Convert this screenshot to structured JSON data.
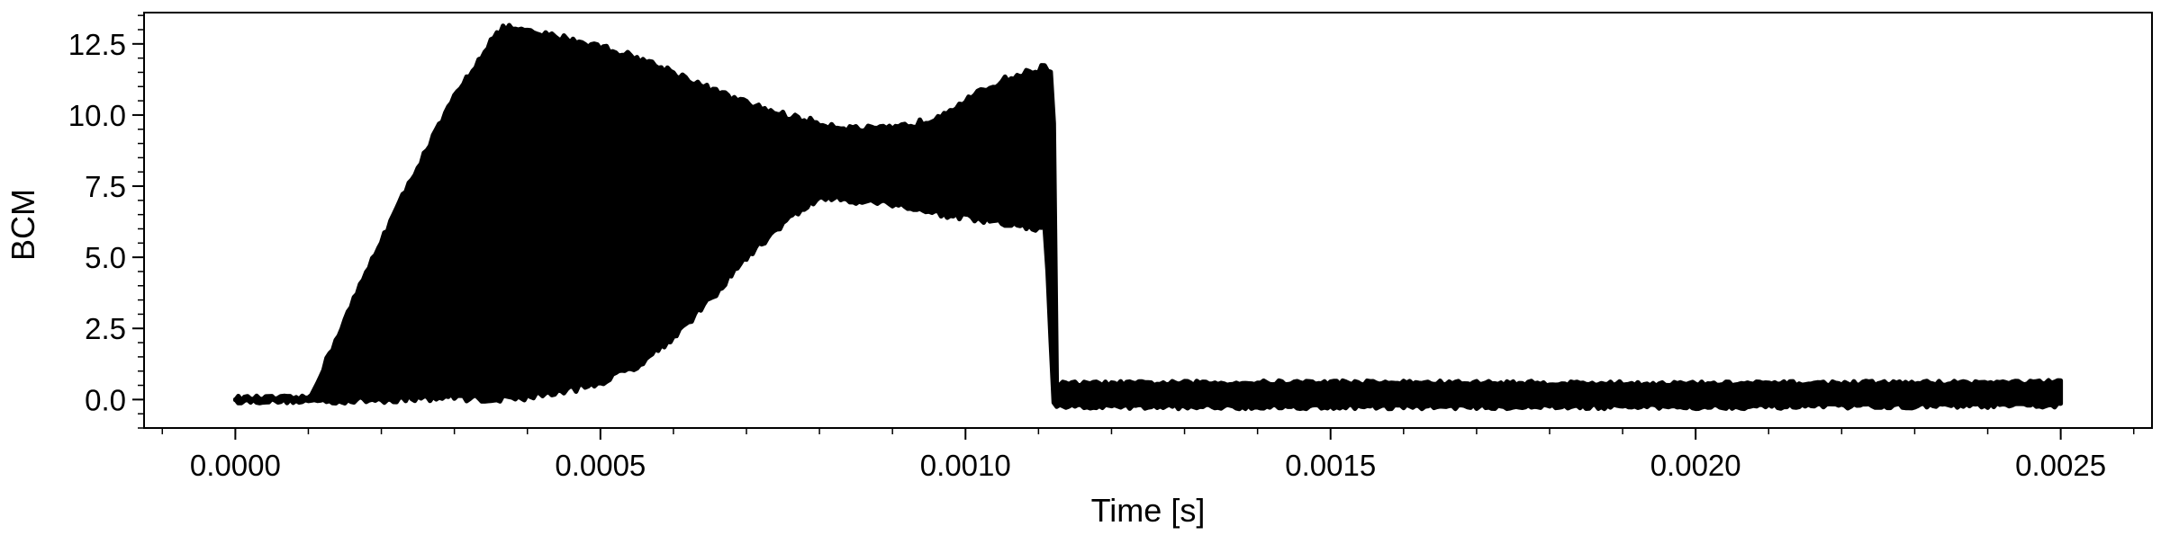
{
  "chart_data": {
    "type": "area",
    "title": "",
    "xlabel": "Time [s]",
    "ylabel": "BCM",
    "xlim": [
      -0.000125,
      0.002625
    ],
    "ylim": [
      -1.0,
      13.6
    ],
    "x_ticks": [
      0.0,
      0.0005,
      0.001,
      0.0015,
      0.002,
      0.0025
    ],
    "x_tick_labels": [
      "0.0000",
      "0.0005",
      "0.0010",
      "0.0015",
      "0.0020",
      "0.0025"
    ],
    "y_ticks": [
      0.0,
      2.5,
      5.0,
      7.5,
      10.0,
      12.5
    ],
    "y_tick_labels": [
      "0.0",
      "2.5",
      "5.0",
      "7.5",
      "10.0",
      "12.5"
    ],
    "grid": false,
    "legend": "none",
    "color": "#000000",
    "series": [
      {
        "x": [
          0.0,
          0.0001,
          0.000105,
          0.00015,
          0.0002,
          0.00025,
          0.0003,
          0.00035,
          0.00037,
          0.0004,
          0.00045,
          0.0005,
          0.00055,
          0.0006,
          0.00065,
          0.0007,
          0.00075,
          0.0008,
          0.00085,
          0.0009,
          0.00095,
          0.001,
          0.00105,
          0.0011,
          0.00111,
          0.00112,
          0.001125,
          0.0015,
          0.002,
          0.0025
        ],
        "upper": [
          0.05,
          0.05,
          0.2,
          2.8,
          5.6,
          8.2,
          10.6,
          12.6,
          13.1,
          12.9,
          12.7,
          12.4,
          12.0,
          11.5,
          10.9,
          10.4,
          10.0,
          9.7,
          9.5,
          9.5,
          9.8,
          10.5,
          11.2,
          11.6,
          11.7,
          11.5,
          0.55,
          0.6,
          0.55,
          0.6
        ],
        "lower": [
          -0.05,
          -0.05,
          -0.05,
          -0.03,
          0.0,
          0.05,
          0.1,
          0.0,
          0.05,
          0.1,
          0.3,
          0.6,
          1.2,
          2.2,
          3.5,
          5.0,
          6.2,
          7.1,
          7.0,
          6.9,
          6.6,
          6.4,
          6.2,
          6.0,
          6.0,
          0.0,
          -0.25,
          -0.25,
          -0.25,
          -0.2
        ]
      }
    ]
  }
}
